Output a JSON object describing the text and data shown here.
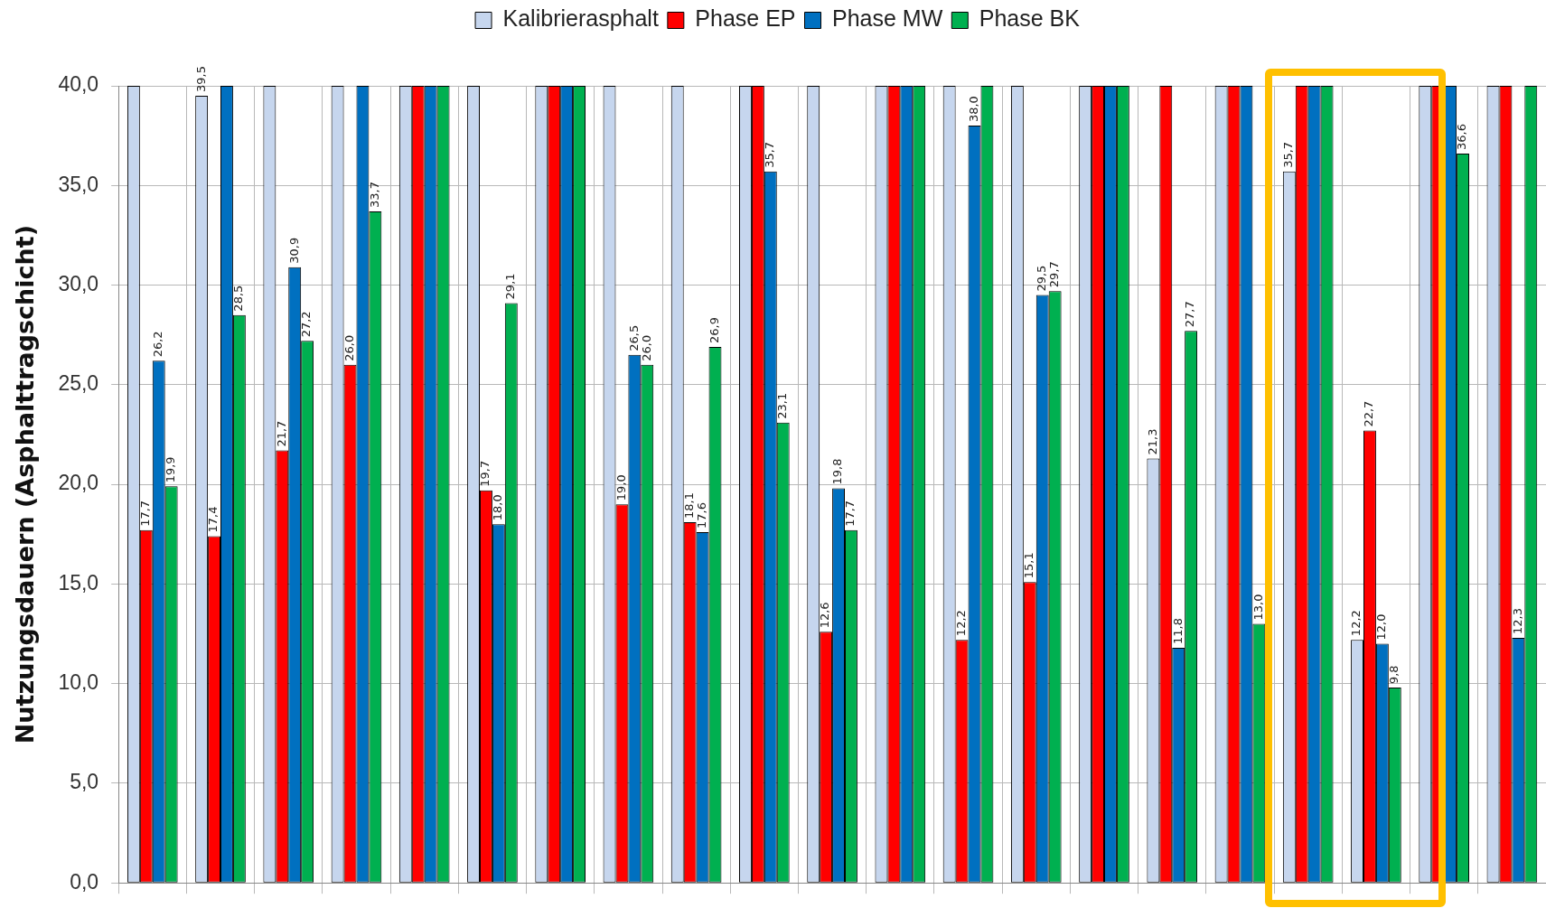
{
  "chart_data": {
    "type": "bar",
    "ylabel": "Nutzungsdauern (Asphalttragschicht)",
    "categories": [
      null,
      null,
      null,
      null,
      null,
      null,
      null,
      null,
      null,
      null,
      null,
      null,
      null,
      null,
      null,
      null,
      null,
      null,
      null,
      null,
      null
    ],
    "series": [
      {
        "name": "Kalibrierasphalt",
        "color": "#c6d6ee",
        "values": [
          40,
          39.5,
          40,
          40,
          40,
          40,
          40,
          40,
          40,
          40,
          40,
          40,
          40,
          40,
          40,
          21.3,
          40,
          35.7,
          12.2,
          40,
          40
        ],
        "value_labels": [
          null,
          "39,5",
          null,
          null,
          null,
          null,
          null,
          null,
          null,
          null,
          null,
          null,
          null,
          null,
          null,
          "21,3",
          null,
          "35,7",
          "12,2",
          null,
          null
        ]
      },
      {
        "name": "Phase EP",
        "color": "#ff0000",
        "values": [
          17.7,
          17.4,
          21.7,
          26.0,
          40,
          19.7,
          40,
          19.0,
          18.1,
          40,
          12.6,
          40,
          12.2,
          15.1,
          40,
          40,
          40,
          40,
          22.7,
          40,
          40
        ],
        "value_labels": [
          "17,7",
          "17,4",
          "21,7",
          "26,0",
          null,
          "19,7",
          null,
          "19,0",
          "18,1",
          null,
          "12,6",
          null,
          "12,2",
          "15,1",
          null,
          null,
          null,
          null,
          "22,7",
          null,
          null
        ]
      },
      {
        "name": "Phase MW",
        "color": "#0070c0",
        "values": [
          26.2,
          40,
          30.9,
          40,
          40,
          18.0,
          40,
          26.5,
          17.6,
          35.7,
          19.8,
          40,
          38.0,
          29.5,
          40,
          11.8,
          40,
          40,
          12.0,
          40,
          12.3
        ],
        "value_labels": [
          "26,2",
          null,
          "30,9",
          null,
          null,
          "18,0",
          null,
          "26,5",
          "17,6",
          "35,7",
          "19,8",
          null,
          "38,0",
          "29,5",
          null,
          "11,8",
          null,
          null,
          "12,0",
          null,
          "12,3"
        ]
      },
      {
        "name": "Phase BK",
        "color": "#00b050",
        "values": [
          19.9,
          28.5,
          27.2,
          33.7,
          40,
          29.1,
          40,
          26.0,
          26.9,
          23.1,
          17.7,
          40,
          40,
          29.7,
          40,
          27.7,
          13.0,
          40,
          9.8,
          36.6,
          40
        ],
        "value_labels": [
          "19,9",
          "28,5",
          "27,2",
          "33,7",
          null,
          "29,1",
          null,
          "26,0",
          "26,9",
          "23,1",
          "17,7",
          null,
          null,
          "29,7",
          null,
          "27,7",
          "13,0",
          null,
          "9,8",
          "36,6",
          null
        ]
      }
    ],
    "ylim": [
      0,
      40
    ],
    "yticks": [
      {
        "value": 0,
        "label": "0,0"
      },
      {
        "value": 5,
        "label": "5,0"
      },
      {
        "value": 10,
        "label": "10,0"
      },
      {
        "value": 15,
        "label": "15,0"
      },
      {
        "value": 20,
        "label": "20,0"
      },
      {
        "value": 25,
        "label": "25,0"
      },
      {
        "value": 30,
        "label": "30,0"
      },
      {
        "value": 35,
        "label": "35,0"
      },
      {
        "value": 40,
        "label": "40,0"
      }
    ],
    "grid": true,
    "legend": "top",
    "tick_labels": "y"
  }
}
